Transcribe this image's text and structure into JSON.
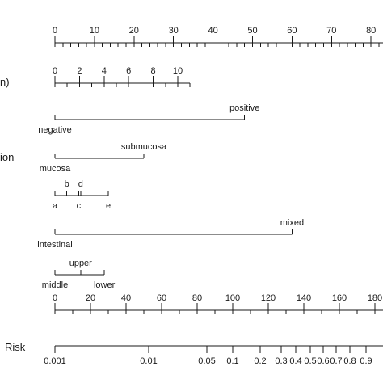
{
  "chart_data": {
    "type": "nomogram",
    "rows": [
      {
        "kind": "numeric",
        "label": "",
        "ticks": [
          0,
          10,
          20,
          30,
          40,
          50,
          60,
          70,
          80
        ],
        "minor_step": 2
      },
      {
        "kind": "numeric",
        "label": "n)",
        "ticks": [
          0,
          2,
          4,
          6,
          8,
          10
        ],
        "minor_step": 1,
        "max": 11
      },
      {
        "kind": "categorical",
        "label": "",
        "levels": [
          {
            "name": "negative",
            "points": 0,
            "pos": "below"
          },
          {
            "name": "positive",
            "points": 48,
            "pos": "above"
          }
        ]
      },
      {
        "kind": "categorical",
        "label": "ion",
        "levels": [
          {
            "name": "mucosa",
            "points": 0,
            "pos": "below"
          },
          {
            "name": "submucosa",
            "points": 22.5,
            "pos": "above"
          }
        ]
      },
      {
        "kind": "categorical",
        "label": "",
        "levels": [
          {
            "name": "a",
            "points": 0,
            "pos": "below"
          },
          {
            "name": "b",
            "points": 3,
            "pos": "above"
          },
          {
            "name": "c",
            "points": 6,
            "pos": "below"
          },
          {
            "name": "d",
            "points": 6.5,
            "pos": "above"
          },
          {
            "name": "e",
            "points": 13.5,
            "pos": "below"
          }
        ]
      },
      {
        "kind": "categorical",
        "label": "",
        "levels": [
          {
            "name": "intestinal",
            "points": 0,
            "pos": "below"
          },
          {
            "name": "mixed",
            "points": 60,
            "pos": "above"
          }
        ]
      },
      {
        "kind": "categorical",
        "label": "",
        "levels": [
          {
            "name": "middle",
            "points": 0,
            "pos": "below"
          },
          {
            "name": "upper",
            "points": 6.5,
            "pos": "above"
          },
          {
            "name": "lower",
            "points": 12.5,
            "pos": "below"
          }
        ]
      },
      {
        "kind": "numeric",
        "label": "",
        "ticks": [
          0,
          20,
          40,
          60,
          80,
          100,
          120,
          140,
          160,
          180
        ],
        "minor_step": 10
      },
      {
        "kind": "risk",
        "label": "Risk",
        "ticks": [
          "0.001",
          "0.01",
          "0.05",
          "0.1",
          "0.2",
          "0.3",
          "0.4",
          "0.5",
          "0.6",
          "0.7",
          "0.8",
          "0.9"
        ]
      }
    ]
  }
}
